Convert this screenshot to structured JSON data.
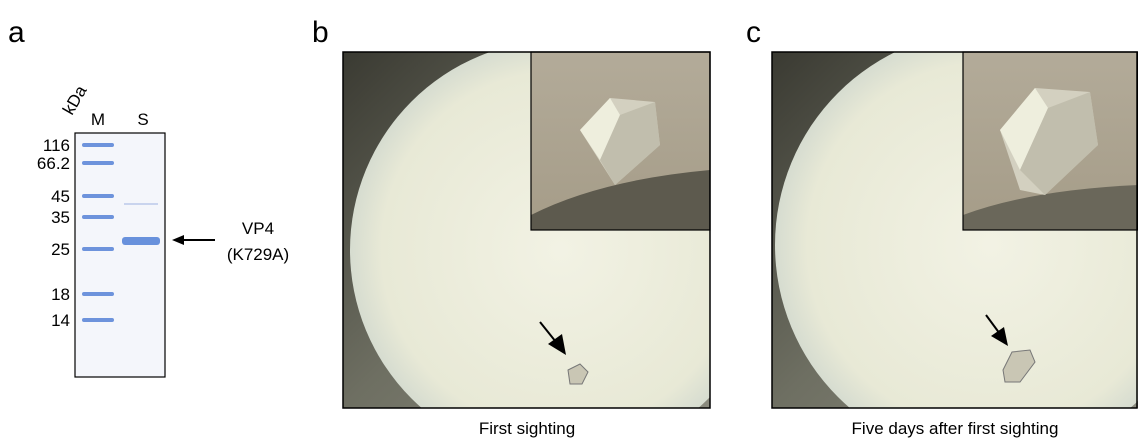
{
  "panels": {
    "a": {
      "label": "a",
      "axis_unit": "kDa",
      "lanes": [
        "M",
        "S"
      ],
      "markers": [
        "116",
        "66.2",
        "45",
        "35",
        "25",
        "18",
        "14"
      ],
      "annotation": {
        "name": "VP4",
        "mutation": "(K729A)"
      }
    },
    "b": {
      "label": "b",
      "caption": "First sighting"
    },
    "c": {
      "label": "c",
      "caption": "Five days after first sighting"
    }
  }
}
